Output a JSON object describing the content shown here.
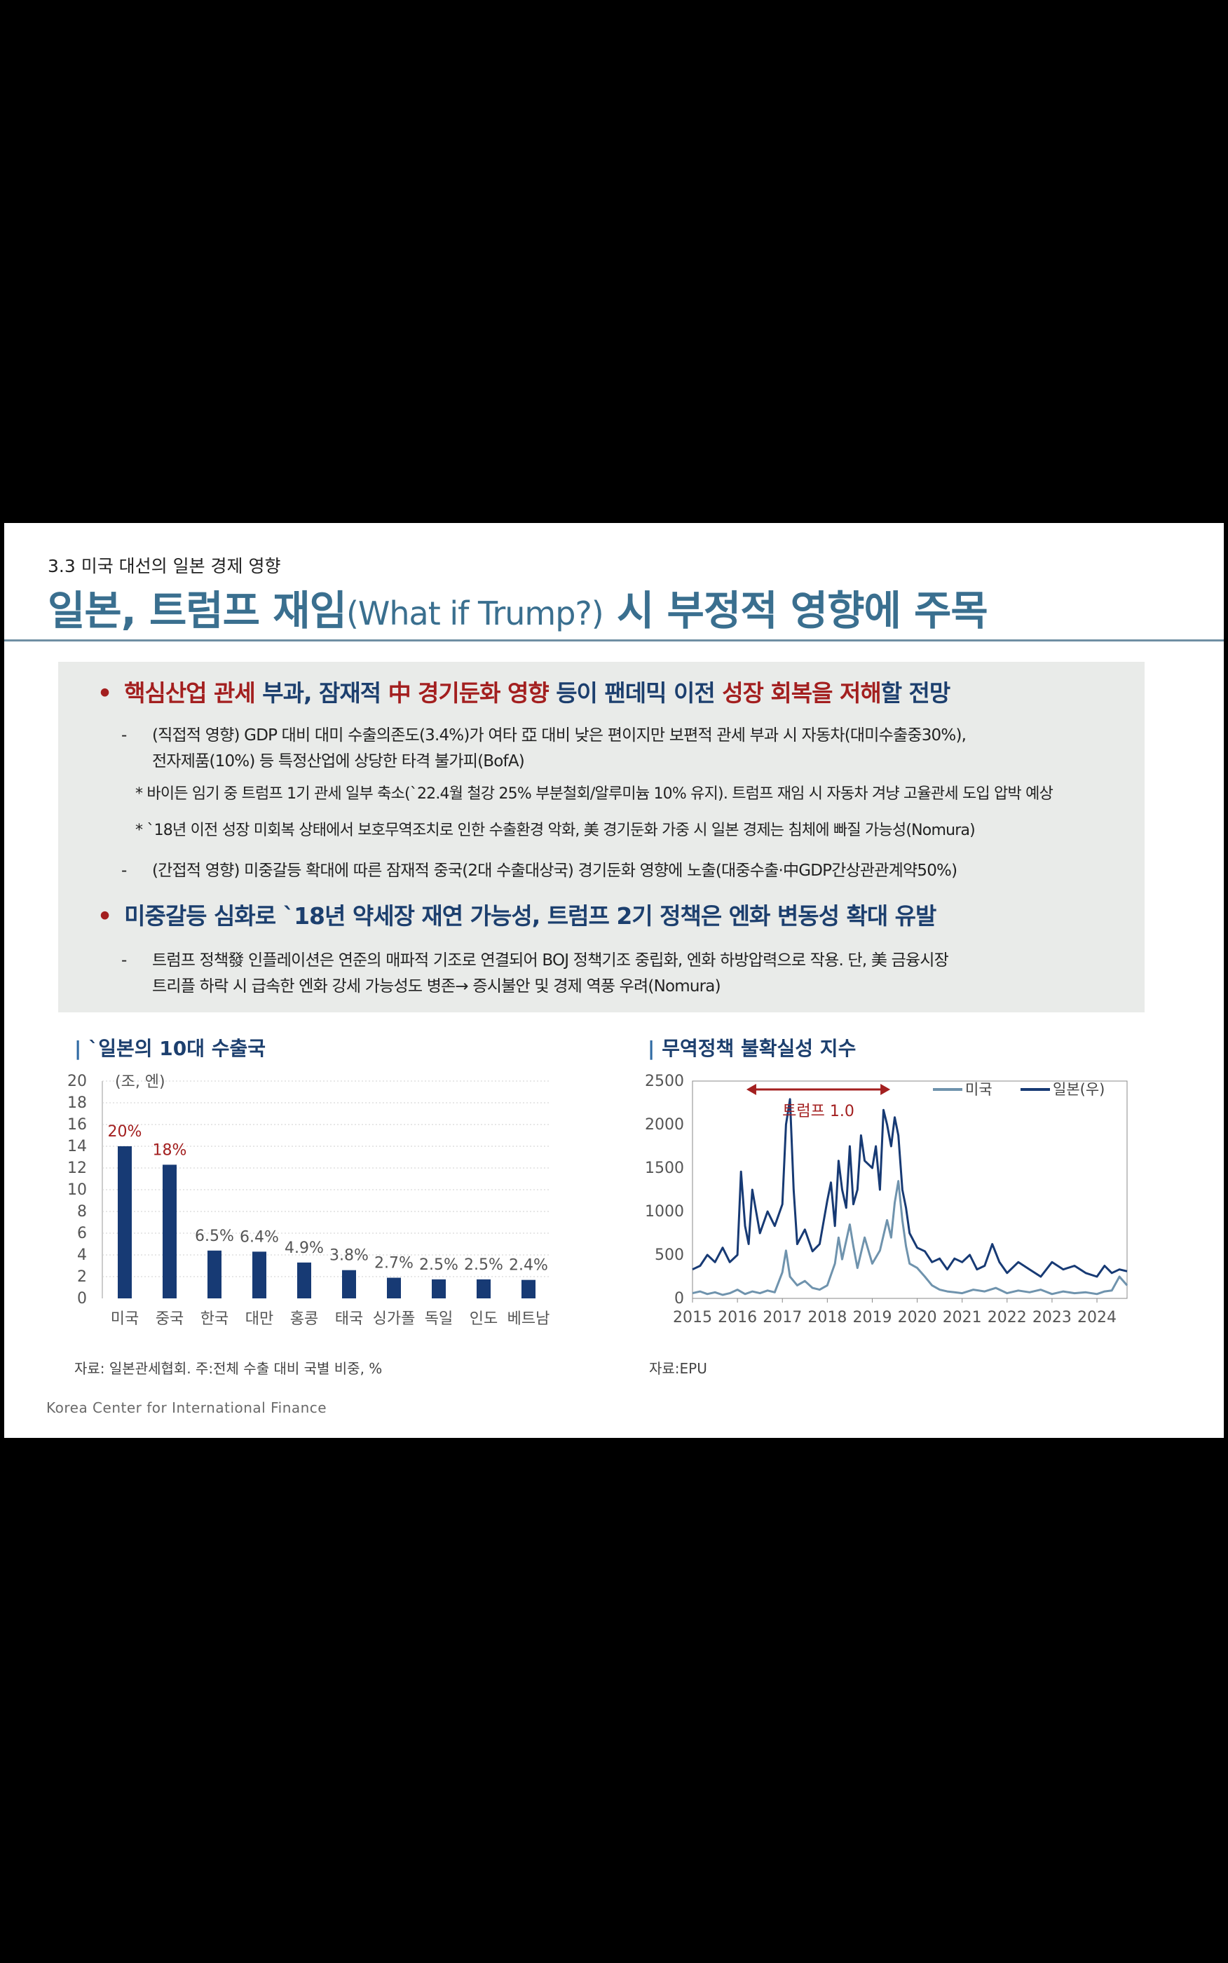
{
  "section_label": "3.3 미국 대선의 일본 경제 영향",
  "title": {
    "main_a": "일본, 트럼프 재임",
    "paren": "(What if Trump?)",
    "main_b": " 시 부정적 영향에 주목"
  },
  "summary": {
    "bullet1": {
      "dot": "•",
      "p1": "핵심산업 관세 ",
      "p2": "부과, 잠재적 ",
      "p3": "中 경기둔화 영향",
      "p4": " 등이 팬데믹 이전 ",
      "p5": "성장 회복을 저해",
      "p6": "할 전망"
    },
    "sub1_line1": "(직접적 영향) GDP 대비 대미 수출의존도(3.4%)가 여타 亞 대비 낮은 편이지만 보편적 관세 부과 시 자동차(대미수출중30%),",
    "sub1_line2": "전자제품(10%) 등 특정산업에 상당한 타격 불가피(BofA)",
    "note1": "* 바이든 임기 중 트럼프 1기 관세 일부 축소(`22.4월 철강 25% 부분철회/알루미늄 10% 유지). 트럼프 재임 시 자동차 겨냥 고율관세 도입 압박 예상",
    "note2": "* `18년 이전 성장 미회복 상태에서 보호무역조치로 인한 수출환경 악화, 美 경기둔화 가중 시 일본 경제는 침체에 빠질 가능성(Nomura)",
    "sub2": "(간접적 영향) 미중갈등 확대에 따른 잠재적 중국(2대 수출대상국) 경기둔화 영향에 노출(대중수출·中GDP간상관관계약50%)",
    "bullet2": "미중갈등 심화로 `18년 약세장 재연 가능성, 트럼프 2기 정책은 엔화 변동성 확대 유발",
    "sub3_line1": "트럼프 정책發 인플레이션은 연준의 매파적 기조로 연결되어 BOJ 정책기조 중립화, 엔화 하방압력으로 작용. 단, 美 금융시장",
    "sub3_line2": "트리플 하락 시 급속한 엔화 강세 가능성도 병존→ 증시불안 및 경제 역풍 우려(Nomura)",
    "dash": "-"
  },
  "left_chart_title": "`일본의 10대 수출국",
  "left_chart_bar": "|",
  "left_source": "자료: 일본관세협회. 주:전체 수출 대비 국별 비중, %",
  "right_chart_title": "무역정책 불확실성 지수",
  "right_chart_bar": "|",
  "right_source": "자료:EPU",
  "footer": "Korea Center for International Finance",
  "colors": {
    "navy": "#173a74",
    "steel": "#6f93ad",
    "red": "#a31f1f",
    "title_blue": "#3a6f8f"
  },
  "chart_data": [
    {
      "type": "bar",
      "unit_label": "(조, 엔)",
      "categories": [
        "미국",
        "중국",
        "한국",
        "대만",
        "홍콩",
        "태국",
        "싱가폴",
        "독일",
        "인도",
        "베트남"
      ],
      "values": [
        14.0,
        12.3,
        4.4,
        4.3,
        3.3,
        2.6,
        1.9,
        1.75,
        1.75,
        1.7
      ],
      "data_labels": [
        "20%",
        "18%",
        "6.5%",
        "6.4%",
        "4.9%",
        "3.8%",
        "2.7%",
        "2.5%",
        "2.5%",
        "2.4%"
      ],
      "highlight_labels": [
        0,
        1
      ],
      "ylim": [
        0,
        20
      ],
      "yticks": [
        0,
        2,
        4,
        6,
        8,
        10,
        12,
        14,
        16,
        18,
        20
      ],
      "grid": true
    },
    {
      "type": "line",
      "x_range": [
        2015,
        2024.67
      ],
      "xticks": [
        2015,
        2016,
        2017,
        2018,
        2019,
        2020,
        2021,
        2022,
        2023,
        2024
      ],
      "y_left": {
        "lim": [
          0,
          2500
        ],
        "ticks": [
          0,
          500,
          1000,
          1500,
          2000,
          2500
        ]
      },
      "y_right": {
        "lim": [
          0,
          600
        ],
        "ticks": [
          0,
          100,
          200,
          300,
          400,
          500,
          600
        ]
      },
      "legend_position": "top-right",
      "annotation": {
        "label": "트럼프 1.0",
        "from": 2016.2,
        "to": 2019.4
      },
      "series": [
        {
          "name": "미국",
          "axis": "left",
          "x": [
            2015,
            2015.17,
            2015.33,
            2015.5,
            2015.67,
            2015.83,
            2016,
            2016.17,
            2016.33,
            2016.5,
            2016.67,
            2016.83,
            2017,
            2017.08,
            2017.17,
            2017.33,
            2017.5,
            2017.67,
            2017.83,
            2018,
            2018.17,
            2018.25,
            2018.33,
            2018.5,
            2018.58,
            2018.67,
            2018.83,
            2019,
            2019.17,
            2019.33,
            2019.42,
            2019.5,
            2019.58,
            2019.67,
            2019.75,
            2019.83,
            2020,
            2020.17,
            2020.33,
            2020.5,
            2020.67,
            2020.83,
            2021,
            2021.25,
            2021.5,
            2021.75,
            2022,
            2022.25,
            2022.5,
            2022.75,
            2023,
            2023.25,
            2023.5,
            2023.75,
            2024,
            2024.17,
            2024.33,
            2024.5,
            2024.67
          ],
          "values": [
            60,
            80,
            50,
            70,
            40,
            60,
            100,
            50,
            80,
            60,
            90,
            70,
            300,
            550,
            250,
            150,
            200,
            120,
            100,
            150,
            400,
            700,
            450,
            850,
            600,
            350,
            700,
            400,
            550,
            900,
            700,
            1100,
            1350,
            900,
            600,
            400,
            350,
            250,
            150,
            100,
            80,
            70,
            60,
            100,
            80,
            120,
            60,
            90,
            70,
            100,
            50,
            80,
            60,
            70,
            50,
            80,
            90,
            250,
            150
          ]
        },
        {
          "name": "일본(우)",
          "axis": "right",
          "x": [
            2015,
            2015.17,
            2015.33,
            2015.5,
            2015.67,
            2015.83,
            2016,
            2016.08,
            2016.17,
            2016.25,
            2016.33,
            2016.5,
            2016.67,
            2016.83,
            2017,
            2017.08,
            2017.17,
            2017.25,
            2017.33,
            2017.5,
            2017.67,
            2017.83,
            2018,
            2018.08,
            2018.17,
            2018.25,
            2018.33,
            2018.42,
            2018.5,
            2018.58,
            2018.67,
            2018.75,
            2018.83,
            2019,
            2019.08,
            2019.17,
            2019.25,
            2019.33,
            2019.42,
            2019.5,
            2019.58,
            2019.67,
            2019.75,
            2019.83,
            2020,
            2020.17,
            2020.33,
            2020.5,
            2020.67,
            2020.83,
            2021,
            2021.17,
            2021.33,
            2021.5,
            2021.67,
            2021.83,
            2022,
            2022.25,
            2022.5,
            2022.75,
            2023,
            2023.25,
            2023.5,
            2023.75,
            2024,
            2024.17,
            2024.33,
            2024.5,
            2024.67
          ],
          "values": [
            80,
            90,
            120,
            100,
            140,
            100,
            120,
            350,
            200,
            150,
            300,
            180,
            240,
            200,
            260,
            480,
            550,
            300,
            150,
            190,
            130,
            150,
            270,
            320,
            200,
            380,
            300,
            250,
            420,
            260,
            300,
            450,
            380,
            360,
            420,
            300,
            520,
            480,
            420,
            500,
            450,
            300,
            250,
            180,
            140,
            130,
            100,
            110,
            80,
            110,
            100,
            120,
            80,
            90,
            150,
            100,
            70,
            100,
            80,
            60,
            100,
            80,
            90,
            70,
            60,
            90,
            70,
            80,
            75
          ]
        }
      ]
    }
  ]
}
